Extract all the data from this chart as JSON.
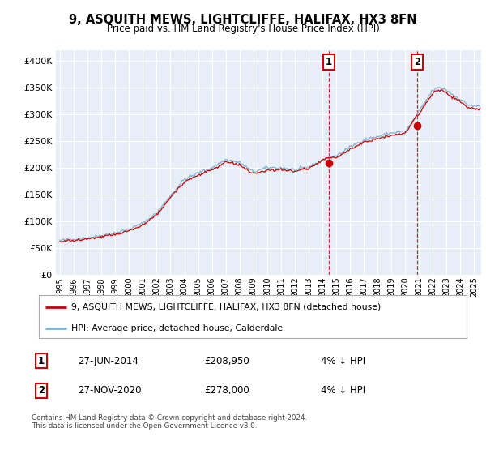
{
  "title": "9, ASQUITH MEWS, LIGHTCLIFFE, HALIFAX, HX3 8FN",
  "subtitle": "Price paid vs. HM Land Registry's House Price Index (HPI)",
  "legend_line1": "9, ASQUITH MEWS, LIGHTCLIFFE, HALIFAX, HX3 8FN (detached house)",
  "legend_line2": "HPI: Average price, detached house, Calderdale",
  "sale1_date": "27-JUN-2014",
  "sale1_price": 208950,
  "sale1_note": "4% ↓ HPI",
  "sale1_year": 2014.46,
  "sale2_date": "27-NOV-2020",
  "sale2_price": 278000,
  "sale2_note": "4% ↓ HPI",
  "sale2_year": 2020.88,
  "footer": "Contains HM Land Registry data © Crown copyright and database right 2024.\nThis data is licensed under the Open Government Licence v3.0.",
  "hpi_color": "#7fb3d3",
  "price_color": "#cc0000",
  "vline_color": "#cc0000",
  "background_color": "#e8eef8",
  "grid_color": "#ffffff",
  "ylim": [
    0,
    420000
  ],
  "xlim_start": 1994.7,
  "xlim_end": 2025.5,
  "hpi_anchors_x": [
    1995,
    1996,
    1997,
    1998,
    1999,
    2000,
    2001,
    2002,
    2003,
    2004,
    2005,
    2006,
    2007,
    2008,
    2009,
    2010,
    2011,
    2012,
    2013,
    2014,
    2015,
    2016,
    2017,
    2018,
    2019,
    2020,
    2020.5,
    2021,
    2021.5,
    2022,
    2022.5,
    2023,
    2023.5,
    2024,
    2024.5,
    2025
  ],
  "hpi_anchors_y": [
    64000,
    66000,
    69000,
    73000,
    78000,
    85000,
    96000,
    115000,
    148000,
    178000,
    190000,
    200000,
    215000,
    210000,
    192000,
    200000,
    200000,
    196000,
    200000,
    215000,
    222000,
    238000,
    252000,
    258000,
    265000,
    268000,
    285000,
    305000,
    325000,
    345000,
    350000,
    345000,
    335000,
    328000,
    318000,
    315000
  ],
  "red_offset_anchors_x": [
    1995,
    2000,
    2005,
    2010,
    2014.46,
    2015,
    2020,
    2020.88,
    2021,
    2025
  ],
  "red_offset_anchors_y": [
    -2000,
    -3000,
    -4000,
    -5000,
    0,
    -4000,
    -4000,
    0,
    -5000,
    -5000
  ],
  "noise_scale_hpi": 1500,
  "noise_scale_red": 1200,
  "noise_seed": 42
}
